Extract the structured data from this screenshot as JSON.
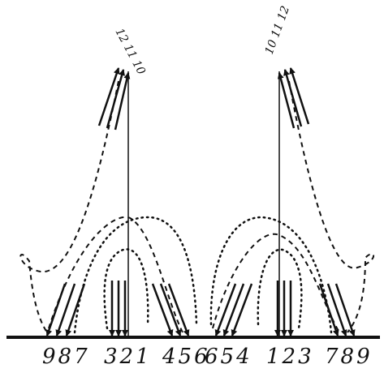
{
  "bottom_labels": {
    "g1": "987",
    "g2": "321",
    "g3": "456",
    "g4": "654",
    "g5": "123",
    "g6": "789"
  },
  "top_labels": {
    "left": "12 11 10",
    "right": "10 11 12"
  },
  "colors": {
    "ink": "#111111",
    "background": "#ffffff"
  }
}
